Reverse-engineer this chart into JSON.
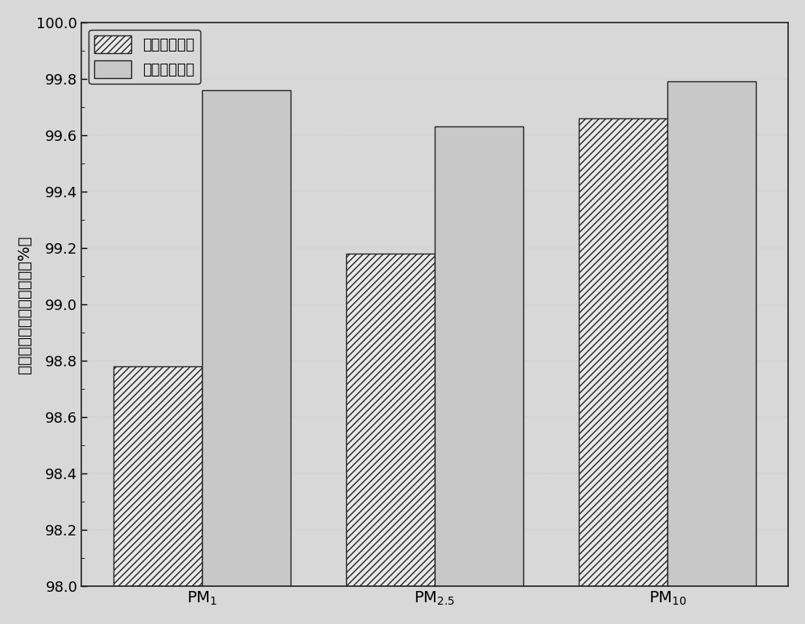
{
  "series1_label": "设计参数运行",
  "series2_label": "最优策略运行",
  "series1_values": [
    98.78,
    99.18,
    99.66
  ],
  "series2_values": [
    99.76,
    99.63,
    99.79
  ],
  "ylabel": "微细颟粒物分级脱除效率（%）",
  "ylim": [
    98.0,
    100.0
  ],
  "yticks": [
    98.0,
    98.2,
    98.4,
    98.6,
    98.8,
    99.0,
    99.2,
    99.4,
    99.6,
    99.8,
    100.0
  ],
  "hatch_pattern": "////",
  "series1_facecolor": "#e8e8e8",
  "series1_edgecolor": "#222222",
  "series2_facecolor": "#c8c8c8",
  "series2_edgecolor": "#222222",
  "background_color": "#d8d8d8",
  "plot_bg_color": "#d8d8d8",
  "bar_width": 0.38,
  "figsize": [
    10.0,
    7.75
  ],
  "dpi": 100,
  "ybase": 98.0
}
